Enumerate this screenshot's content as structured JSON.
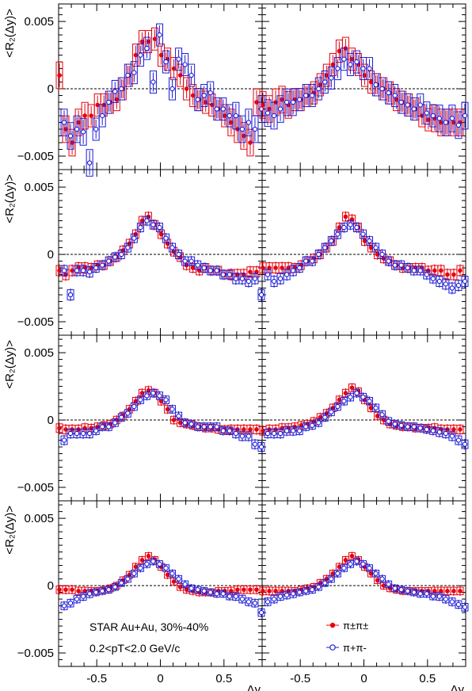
{
  "chart_data": {
    "type": "scatter",
    "layout": "4 rows x 2 columns of panels",
    "x_range": [
      -0.8,
      0.8
    ],
    "y_range": [
      -0.006,
      0.0063
    ],
    "xlabel": "Δy",
    "ylabel": "<R₂(Δy)>",
    "x_ticks": [
      "-0.5",
      "0",
      "0.5"
    ],
    "y_ticks": [
      "0.005",
      "0",
      "−0.005"
    ],
    "series": [
      {
        "name": "π±π±",
        "color": "#e8000b",
        "marker": "filled-circle"
      },
      {
        "name": "π+π-",
        "color": "#1c1cd8",
        "marker": "open-circle"
      }
    ],
    "annotation_line1": "STAR Au+Au, 30%-40%",
    "annotation_line2": "0.2<pT<2.0 GeV/c",
    "legend_position": "bottom-right of last panel",
    "x": [
      -0.775,
      -0.725,
      -0.675,
      -0.625,
      -0.575,
      -0.525,
      -0.475,
      -0.425,
      -0.375,
      -0.325,
      -0.275,
      -0.225,
      -0.175,
      -0.125,
      -0.075,
      -0.025,
      0.025,
      0.075,
      0.125,
      0.175,
      0.225,
      0.275,
      0.325,
      0.375,
      0.425,
      0.475,
      0.525,
      0.575,
      0.625,
      0.675,
      0.725,
      0.775
    ],
    "panels": [
      {
        "row": 1,
        "col": 1,
        "red": [
          0.001,
          -0.003,
          -0.004,
          -0.0025,
          -0.002,
          -0.002,
          -0.0012,
          -0.0012,
          -0.001,
          -0.0008,
          0.0,
          0.001,
          0.0025,
          0.0035,
          0.0035,
          0.0037,
          0.0025,
          0.0022,
          0.0015,
          0.001,
          0.0,
          -0.0005,
          -0.0008,
          -0.001,
          -0.0012,
          -0.0015,
          -0.002,
          -0.0025,
          -0.003,
          -0.0035,
          -0.004,
          -0.001
        ],
        "blue": [
          -0.0025,
          -0.0035,
          -0.003,
          -0.0032,
          -0.0055,
          -0.003,
          -0.002,
          -0.001,
          -0.0002,
          0.0,
          0.001,
          0.0012,
          0.0025,
          0.003,
          0.0005,
          0.004,
          0.002,
          0.0,
          0.0022,
          0.0018,
          0.001,
          -0.0008,
          -0.0005,
          -0.0003,
          -0.0015,
          -0.0015,
          -0.002,
          -0.002,
          -0.003,
          -0.0025,
          -0.003,
          -0.0015
        ]
      },
      {
        "row": 1,
        "col": 2,
        "red": [
          -0.0012,
          -0.0015,
          -0.001,
          -0.0008,
          -0.0012,
          -0.0008,
          -0.0008,
          -0.0005,
          -0.0003,
          0.0003,
          0.001,
          0.0018,
          0.0028,
          0.003,
          0.0022,
          0.0018,
          0.001,
          0.0005,
          0.0003,
          0.0,
          -0.0003,
          -0.0008,
          -0.001,
          -0.0012,
          -0.0015,
          -0.002,
          -0.0023,
          -0.0022,
          -0.0025,
          -0.0025,
          -0.0025,
          -0.0025
        ],
        "blue": [
          -0.0018,
          -0.002,
          -0.0015,
          -0.001,
          -0.001,
          -0.0008,
          -0.0005,
          -0.0005,
          0.0,
          0.0005,
          0.0008,
          0.0015,
          0.0022,
          0.0018,
          0.002,
          0.0015,
          0.0015,
          0.0003,
          0.0,
          -0.0003,
          -0.0005,
          -0.001,
          -0.0012,
          -0.0015,
          -0.0012,
          -0.0018,
          -0.002,
          -0.0022,
          -0.0025,
          -0.0022,
          -0.0027,
          -0.002
        ]
      },
      {
        "row": 2,
        "col": 1,
        "red": [
          -0.0012,
          -0.0015,
          -0.0012,
          -0.001,
          -0.001,
          -0.001,
          -0.0008,
          -0.0008,
          -0.0005,
          -0.0002,
          0.0003,
          0.0008,
          0.0015,
          0.0025,
          0.0028,
          0.0022,
          0.0015,
          0.0008,
          0.0002,
          -0.0002,
          -0.0008,
          -0.001,
          -0.0012,
          -0.001,
          -0.0012,
          -0.0012,
          -0.0015,
          -0.0015,
          -0.0015,
          -0.0015,
          -0.0013,
          -0.0013
        ],
        "blue": [
          -0.0012,
          -0.003,
          -0.0012,
          -0.0012,
          -0.0013,
          -0.001,
          -0.0008,
          -0.0005,
          -0.0002,
          0.0,
          0.0005,
          0.0012,
          0.002,
          0.0025,
          0.0022,
          0.002,
          0.0012,
          0.0005,
          0.0,
          -0.0005,
          -0.0005,
          -0.0008,
          -0.001,
          -0.0012,
          -0.0012,
          -0.0015,
          -0.0015,
          -0.0018,
          -0.0018,
          -0.002,
          -0.0018,
          -0.003
        ]
      },
      {
        "row": 2,
        "col": 2,
        "red": [
          -0.001,
          -0.001,
          -0.001,
          -0.001,
          -0.001,
          -0.001,
          -0.0008,
          -0.0005,
          -0.0003,
          0.0,
          0.0005,
          0.001,
          0.002,
          0.0028,
          0.0026,
          0.002,
          0.001,
          0.0005,
          0.0,
          -0.0003,
          -0.0005,
          -0.0008,
          -0.001,
          -0.001,
          -0.001,
          -0.001,
          -0.0012,
          -0.0012,
          -0.0012,
          -0.0015,
          -0.0015,
          -0.0012
        ],
        "blue": [
          -0.0015,
          -0.002,
          -0.0018,
          -0.0015,
          -0.0012,
          -0.001,
          -0.0005,
          -0.0005,
          0.0,
          0.0005,
          0.001,
          0.0015,
          0.002,
          0.0022,
          0.002,
          0.0015,
          0.001,
          0.0005,
          0.0,
          -0.0005,
          -0.0008,
          -0.0008,
          -0.001,
          -0.0012,
          -0.0012,
          -0.0015,
          -0.0018,
          -0.002,
          -0.0022,
          -0.0025,
          -0.0023,
          -0.002
        ]
      },
      {
        "row": 3,
        "col": 1,
        "red": [
          -0.0006,
          -0.0007,
          -0.0007,
          -0.0007,
          -0.0006,
          -0.0006,
          -0.0005,
          -0.0004,
          -0.0003,
          0.0,
          0.0003,
          0.0008,
          0.0014,
          0.002,
          0.0022,
          0.002,
          0.0014,
          0.0008,
          0.0,
          -0.0002,
          -0.0003,
          -0.0004,
          -0.0005,
          -0.0006,
          -0.0006,
          -0.0007,
          -0.0007,
          -0.0007,
          -0.0007,
          -0.0007,
          -0.0007,
          -0.0007
        ],
        "blue": [
          -0.0015,
          -0.001,
          -0.001,
          -0.001,
          -0.001,
          -0.0008,
          -0.0005,
          -0.0005,
          -0.0002,
          0.0002,
          0.0005,
          0.001,
          0.0015,
          0.0018,
          0.002,
          0.0018,
          0.0015,
          0.0008,
          0.0003,
          -0.0002,
          -0.0003,
          -0.0005,
          -0.0005,
          -0.0005,
          -0.0005,
          -0.0008,
          -0.0008,
          -0.001,
          -0.0012,
          -0.0012,
          -0.0018,
          -0.002
        ]
      },
      {
        "row": 3,
        "col": 2,
        "red": [
          -0.0008,
          -0.0007,
          -0.0007,
          -0.0006,
          -0.0006,
          -0.0005,
          -0.0004,
          -0.0003,
          -0.0001,
          0.0002,
          0.0005,
          0.0009,
          0.0015,
          0.002,
          0.0024,
          0.0021,
          0.0015,
          0.0009,
          0.0003,
          0.0,
          -0.0003,
          -0.0004,
          -0.0005,
          -0.0005,
          -0.0006,
          -0.0006,
          -0.0006,
          -0.0006,
          -0.0007,
          -0.0007,
          -0.0007,
          -0.0007
        ],
        "blue": [
          -0.001,
          -0.001,
          -0.001,
          -0.0008,
          -0.0008,
          -0.0008,
          -0.0005,
          -0.0004,
          -0.0002,
          0.0002,
          0.0006,
          0.001,
          0.0014,
          0.0017,
          0.002,
          0.0017,
          0.0014,
          0.0009,
          0.0004,
          -0.0001,
          -0.0003,
          -0.0004,
          -0.0005,
          -0.0005,
          -0.0006,
          -0.0007,
          -0.0008,
          -0.0009,
          -0.001,
          -0.0012,
          -0.0015,
          -0.0018
        ]
      },
      {
        "row": 4,
        "col": 1,
        "red": [
          -0.0003,
          -0.0003,
          -0.0003,
          -0.0004,
          -0.0004,
          -0.0004,
          -0.0004,
          -0.0003,
          -0.0002,
          0.0,
          0.0004,
          0.0008,
          0.0014,
          0.0019,
          0.0022,
          0.0019,
          0.0014,
          0.0008,
          0.0003,
          -0.0001,
          -0.0003,
          -0.0004,
          -0.0005,
          -0.0005,
          -0.0005,
          -0.0004,
          -0.0004,
          -0.0004,
          -0.0003,
          -0.0003,
          -0.0003,
          -0.0003
        ],
        "blue": [
          -0.0015,
          -0.0013,
          -0.001,
          -0.0008,
          -0.0006,
          -0.0005,
          -0.0004,
          -0.0003,
          -0.0001,
          0.0002,
          0.0005,
          0.0009,
          0.0013,
          0.0016,
          0.0018,
          0.0016,
          0.0013,
          0.0009,
          0.0005,
          0.0001,
          -0.0002,
          -0.0003,
          -0.0004,
          -0.0005,
          -0.0006,
          -0.0006,
          -0.0008,
          -0.0008,
          -0.001,
          -0.0012,
          -0.0013,
          -0.002
        ]
      },
      {
        "row": 4,
        "col": 2,
        "red": [
          -0.0004,
          -0.0004,
          -0.0004,
          -0.0004,
          -0.0004,
          -0.0004,
          -0.0003,
          -0.0002,
          -0.0001,
          0.0002,
          0.0005,
          0.0009,
          0.0014,
          0.0019,
          0.0022,
          0.0019,
          0.0014,
          0.0009,
          0.0004,
          0.0,
          -0.0002,
          -0.0003,
          -0.0004,
          -0.0004,
          -0.0004,
          -0.0004,
          -0.0004,
          -0.0004,
          -0.0004,
          -0.0004,
          -0.0004,
          -0.0004
        ],
        "blue": [
          -0.0012,
          -0.001,
          -0.0008,
          -0.0007,
          -0.0006,
          -0.0005,
          -0.0004,
          -0.0003,
          -0.0001,
          0.0002,
          0.0005,
          0.0009,
          0.0013,
          0.0016,
          0.0018,
          0.0016,
          0.0013,
          0.0009,
          0.0005,
          0.0001,
          -0.0002,
          -0.0003,
          -0.0004,
          -0.0005,
          -0.0006,
          -0.0006,
          -0.0008,
          -0.0008,
          -0.001,
          -0.0012,
          -0.0014,
          -0.0016
        ]
      }
    ]
  }
}
